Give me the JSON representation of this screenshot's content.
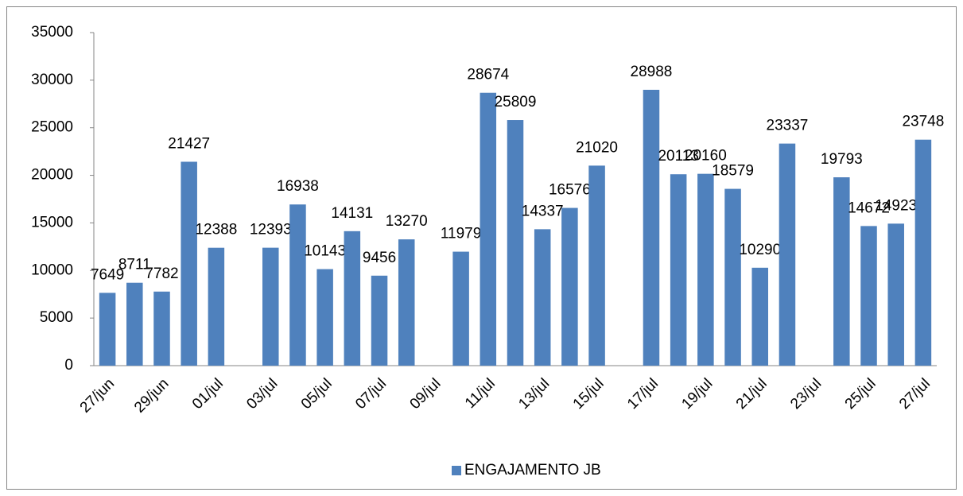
{
  "chart_data": {
    "type": "bar",
    "categories": [
      "27/jun",
      null,
      "29/jun",
      null,
      "01/jul",
      null,
      "03/jul",
      null,
      "05/jul",
      null,
      "07/jul",
      null,
      "09/jul",
      null,
      "11/jul",
      null,
      "13/jul",
      null,
      "15/jul",
      null,
      "17/jul",
      null,
      "19/jul",
      null,
      "21/jul",
      null,
      "23/jul",
      null,
      "25/jul",
      null,
      "27/jul"
    ],
    "series": [
      {
        "name": "ENGAJAMENTO JB",
        "color": "#4f81bd",
        "values": [
          7649,
          8711,
          7782,
          21427,
          12388,
          null,
          12393,
          16938,
          10143,
          14131,
          9456,
          13270,
          null,
          11979,
          28674,
          25809,
          14337,
          16576,
          21020,
          null,
          28988,
          20113,
          20160,
          18579,
          10290,
          23337,
          null,
          19793,
          14672,
          14923,
          23748
        ]
      }
    ],
    "ylim": [
      0,
      35000
    ],
    "yticks": [
      0,
      5000,
      10000,
      15000,
      20000,
      25000,
      30000,
      35000
    ],
    "legend": "bottom",
    "grid": false
  }
}
